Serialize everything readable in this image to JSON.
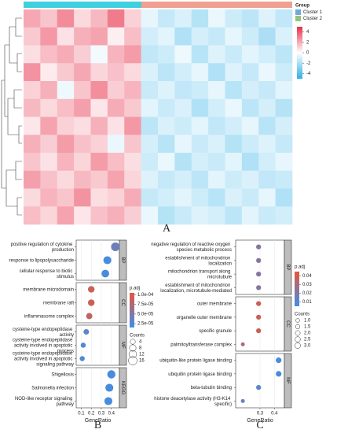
{
  "chart_data": [
    {
      "type": "heatmap",
      "group_legend": {
        "title": "Group",
        "names": [
          "Cluster 1",
          "Cluster 2"
        ],
        "colors": [
          "#6fa8dc",
          "#93c47d"
        ]
      },
      "colors": [
        "#2fb0e6",
        "#ffffff",
        "#e8304a"
      ],
      "clim": [
        -5,
        5
      ],
      "cticks": [
        4,
        2,
        0,
        -2,
        -4
      ],
      "panel_label": "A",
      "values": [
        [
          2.1,
          1.4,
          2.8,
          0.9,
          1.7,
          3.2,
          1.1,
          -0.6,
          -1.4,
          -0.9,
          -1.8,
          -0.5,
          -1.2,
          -1.6,
          -0.8,
          -1.5
        ],
        [
          1.3,
          2.5,
          0.7,
          1.9,
          2.2,
          0.4,
          1.6,
          -1.1,
          -0.7,
          -1.9,
          -1.0,
          -1.4,
          -0.6,
          -1.2,
          -2.0,
          -0.9
        ],
        [
          0.8,
          1.6,
          2.0,
          1.2,
          -0.3,
          1.8,
          2.4,
          -1.5,
          -1.2,
          -0.4,
          -1.7,
          -0.8,
          -1.3,
          -0.7,
          -1.1,
          -1.6
        ],
        [
          2.6,
          0.5,
          1.3,
          2.1,
          1.0,
          1.5,
          0.9,
          -0.9,
          -1.6,
          -1.1,
          -0.6,
          -1.9,
          -0.8,
          -1.4,
          -0.5,
          -1.2
        ],
        [
          1.1,
          1.9,
          -0.4,
          1.4,
          2.7,
          1.2,
          1.8,
          -1.3,
          -0.8,
          -1.5,
          -1.2,
          -0.6,
          -1.7,
          -1.0,
          -1.4,
          -0.7
        ],
        [
          1.7,
          0.9,
          1.6,
          2.3,
          0.6,
          2.0,
          1.3,
          -0.7,
          -1.3,
          -0.9,
          -1.9,
          -1.1,
          -0.5,
          -1.6,
          -1.0,
          -1.8
        ],
        [
          0.6,
          2.2,
          1.1,
          0.8,
          1.9,
          0.7,
          2.5,
          -1.6,
          -0.9,
          -1.2,
          -0.7,
          -1.5,
          -1.1,
          -0.6,
          -1.7,
          -1.0
        ],
        [
          1.9,
          1.2,
          2.4,
          1.5,
          1.1,
          -0.5,
          1.4,
          -1.0,
          -1.7,
          -0.6,
          -1.3,
          -0.9,
          -1.8,
          -1.2,
          -0.8,
          -1.4
        ],
        [
          1.4,
          0.7,
          1.8,
          1.0,
          2.4,
          1.6,
          0.8,
          -1.2,
          -0.5,
          -1.8,
          -1.0,
          -1.3,
          -0.7,
          -1.9,
          -1.1,
          -0.6
        ],
        [
          2.3,
          1.5,
          0.9,
          1.7,
          1.3,
          2.2,
          1.0,
          -0.8,
          -1.4,
          -1.0,
          -1.6,
          -0.7,
          -1.2,
          -0.9,
          -1.5,
          -1.3
        ],
        [
          0.9,
          1.8,
          1.4,
          2.6,
          0.8,
          1.1,
          2.0,
          -1.4,
          -1.1,
          -0.7,
          -1.2,
          -1.7,
          -0.9,
          -1.3,
          -0.6,
          -1.9
        ],
        [
          1.6,
          1.0,
          2.2,
          0.6,
          1.5,
          1.9,
          1.2,
          -0.5,
          -1.8,
          -1.3,
          -0.8,
          -1.0,
          -1.6,
          -0.7,
          -1.3,
          -1.1
        ]
      ]
    },
    {
      "type": "dotplot",
      "panel_label": "B",
      "xlabel": "GeneRatio",
      "xlim": [
        0.05,
        0.48
      ],
      "xticks": [
        0.1,
        0.2,
        0.3,
        0.4
      ],
      "color_title": "p.adj",
      "color_low": "#3d8fe8",
      "color_high": "#e8553b",
      "clim": [
        1.5e-05,
        0.000105
      ],
      "cticks": [
        {
          "value": 0.0001,
          "label": "1.0e-04"
        },
        {
          "value": 7.5e-05,
          "label": "7.5e-05"
        },
        {
          "value": 5e-05,
          "label": "5.0e-05"
        },
        {
          "value": 2.5e-05,
          "label": "2.5e-05"
        }
      ],
      "size_title": "Counts",
      "size_ticks": [
        4,
        8,
        12,
        16
      ],
      "facets": [
        {
          "name": "BP",
          "terms": [
            "positive regulation of cytokine production",
            "response to lipopolysaccharide",
            "cellular response to biotic stimulus"
          ],
          "gene_ratio": [
            0.44,
            0.36,
            0.34
          ],
          "p_adjust": [
            4e-05,
            2e-05,
            2e-05
          ],
          "counts": [
            16,
            13,
            12
          ]
        },
        {
          "name": "CC",
          "terms": [
            "membrane microdomain",
            "membrane raft",
            "inflammasome complex"
          ],
          "gene_ratio": [
            0.2,
            0.2,
            0.18
          ],
          "p_adjust": [
            9e-05,
            9e-05,
            8.5e-05
          ],
          "counts": [
            8,
            8,
            7
          ]
        },
        {
          "name": "MF",
          "terms": [
            "cysteine-type endopeptidase activity",
            "cysteine-type endopeptidase activity involved in apoptotic process",
            "cysteine-type endopeptidase activity involved in apoptotic signaling pathway"
          ],
          "gene_ratio": [
            0.15,
            0.12,
            0.11
          ],
          "p_adjust": [
            3e-05,
            2.5e-05,
            2.5e-05
          ],
          "counts": [
            5,
            4,
            4
          ]
        },
        {
          "name": "KEGG",
          "terms": [
            "Shigellosis",
            "Salmonella infection",
            "NOD-like receptor signaling pathway"
          ],
          "gene_ratio": [
            0.4,
            0.38,
            0.37
          ],
          "p_adjust": [
            2e-05,
            2e-05,
            2e-05
          ],
          "counts": [
            14,
            13,
            13
          ]
        }
      ]
    },
    {
      "type": "dotplot",
      "panel_label": "C",
      "xlabel": "GeneRatio",
      "xlim": [
        0.13,
        0.47
      ],
      "xticks": [
        0.3,
        0.4
      ],
      "color_title": "p.adj",
      "color_low": "#3d8fe8",
      "color_high": "#e8553b",
      "clim": [
        0.005,
        0.045
      ],
      "cticks": [
        0.04,
        0.03,
        0.02,
        0.01
      ],
      "size_title": "Counts",
      "size_ticks": [
        {
          "value": 1,
          "label": "1.0"
        },
        1.5,
        {
          "value": 2,
          "label": "2.0"
        },
        2.5,
        {
          "value": 3,
          "label": "3.0"
        }
      ],
      "facets": [
        {
          "name": "BP",
          "terms": [
            "negative regulation of reactive oxygen species metabolic process",
            "establishment of mitochondrion localization",
            "mitochondrion transport along microtubule",
            "establishment of mitochondrion localization, microtubule-mediated"
          ],
          "gene_ratio": [
            0.29,
            0.29,
            0.29,
            0.29
          ],
          "p_adjust": [
            0.022,
            0.022,
            0.022,
            0.022
          ],
          "counts": [
            2,
            2,
            2,
            2
          ]
        },
        {
          "name": "CC",
          "terms": [
            "outer membrane",
            "organelle outer membrane",
            "specific granule",
            "palmitoyltransferase complex"
          ],
          "gene_ratio": [
            0.29,
            0.29,
            0.29,
            0.18
          ],
          "p_adjust": [
            0.038,
            0.038,
            0.038,
            0.03
          ],
          "counts": [
            2,
            2,
            2,
            1
          ]
        },
        {
          "name": "MF",
          "terms": [
            "ubiquitin-like protein ligase binding",
            "ubiquitin protein ligase binding",
            "beta-tubulin binding",
            "histone deacetylase activity (H3-K14 specific)"
          ],
          "gene_ratio": [
            0.43,
            0.43,
            0.29,
            0.18
          ],
          "p_adjust": [
            0.008,
            0.008,
            0.012,
            0.015
          ],
          "counts": [
            3,
            3,
            2,
            1
          ]
        }
      ]
    }
  ]
}
